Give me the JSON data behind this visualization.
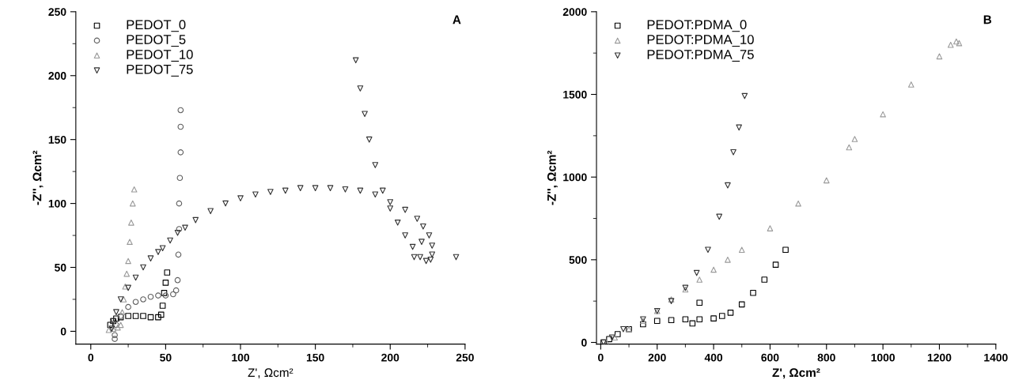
{
  "chart_data": [
    {
      "type": "scatter",
      "xlabel": "Z', Ωcm²",
      "ylabel": "-Z'', Ωcm²",
      "annotations": [
        "A"
      ],
      "xlim": [
        -10,
        250
      ],
      "ylim": [
        -10,
        250
      ],
      "xticks": [
        0,
        50,
        100,
        150,
        200,
        250
      ],
      "yticks": [
        0,
        50,
        100,
        150,
        200,
        250
      ],
      "grid": false,
      "legend": "top left",
      "series": [
        {
          "name": "PEDOT_0",
          "color": "#000000",
          "marker": "square",
          "x": [
            13,
            15,
            17,
            20,
            25,
            30,
            35,
            40,
            45,
            47,
            48,
            49,
            50,
            51
          ],
          "values": [
            5,
            8,
            10,
            11,
            12,
            12,
            12,
            11,
            11,
            13,
            20,
            30,
            38,
            46
          ]
        },
        {
          "name": "PEDOT_5",
          "color": "#606060",
          "marker": "circle",
          "x": [
            16,
            16,
            17,
            20,
            25,
            30,
            35,
            40,
            45,
            50,
            55,
            57,
            58,
            58.5,
            59,
            59,
            59.5,
            60,
            60,
            60
          ],
          "values": [
            -6,
            -3,
            5,
            12,
            19,
            23,
            25,
            27,
            28,
            28,
            29,
            32,
            40,
            60,
            80,
            100,
            120,
            140,
            160,
            173
          ]
        },
        {
          "name": "PEDOT_10",
          "color": "#9a9a9a",
          "marker": "triangle",
          "x": [
            12,
            15,
            18,
            20,
            21,
            22,
            23,
            24,
            25,
            26,
            27,
            28,
            29
          ],
          "values": [
            1,
            2,
            3,
            5,
            15,
            25,
            35,
            45,
            55,
            70,
            85,
            100,
            111
          ]
        },
        {
          "name": "PEDOT_75",
          "color": "#333333",
          "marker": "triangle_down",
          "x": [
            14,
            15,
            17,
            20,
            25,
            30,
            35,
            40,
            45,
            48,
            53,
            58,
            63,
            70,
            80,
            90,
            100,
            110,
            120,
            130,
            140,
            150,
            160,
            170,
            180,
            190,
            200,
            210,
            218,
            222,
            226,
            228,
            228,
            227,
            224,
            220,
            215,
            210,
            205,
            200,
            195,
            190,
            186,
            183,
            180,
            177,
            216,
            221,
            244
          ],
          "values": [
            2,
            8,
            15,
            25,
            34,
            42,
            50,
            57,
            62,
            65,
            71,
            77,
            81,
            87,
            94,
            100,
            104,
            107,
            109,
            110,
            112,
            112,
            112,
            111,
            110,
            107,
            101,
            95,
            88,
            82,
            75,
            67,
            60,
            56,
            55,
            58,
            66,
            75,
            85,
            96,
            110,
            130,
            150,
            170,
            190,
            212,
            58,
            70,
            58
          ]
        }
      ]
    },
    {
      "type": "scatter",
      "xlabel": "Z', Ωcm²",
      "ylabel": "-Z'', Ωcm²",
      "annotations": [
        "B"
      ],
      "xlim": [
        -15,
        1400
      ],
      "ylim": [
        -10,
        2000
      ],
      "xticks": [
        0,
        200,
        400,
        600,
        800,
        1000,
        1200,
        1400
      ],
      "yticks": [
        0,
        500,
        1000,
        1500,
        2000
      ],
      "grid": false,
      "legend": "top left",
      "series": [
        {
          "name": "PEDOT:PDMA_0",
          "color": "#000000",
          "marker": "square",
          "x": [
            10,
            30,
            60,
            100,
            150,
            200,
            250,
            300,
            350,
            400,
            430,
            460,
            500,
            540,
            580,
            620,
            655,
            325,
            350
          ],
          "values": [
            0,
            20,
            50,
            80,
            110,
            130,
            135,
            140,
            140,
            145,
            160,
            180,
            230,
            300,
            380,
            470,
            560,
            115,
            240
          ]
        },
        {
          "name": "PEDOT:PDMA_10",
          "color": "#9a9a9a",
          "marker": "triangle",
          "x": [
            20,
            50,
            100,
            150,
            200,
            250,
            300,
            350,
            400,
            450,
            500,
            600,
            700,
            800,
            880,
            900,
            1000,
            1100,
            1200,
            1240,
            1260,
            1270
          ],
          "values": [
            0,
            30,
            80,
            130,
            190,
            260,
            320,
            380,
            440,
            500,
            560,
            690,
            840,
            980,
            1180,
            1230,
            1380,
            1560,
            1730,
            1800,
            1820,
            1810
          ]
        },
        {
          "name": "PEDOT:PDMA_75",
          "color": "#333333",
          "marker": "triangle_down",
          "x": [
            10,
            40,
            80,
            150,
            200,
            250,
            300,
            340,
            380,
            420,
            450,
            470,
            490,
            510
          ],
          "values": [
            0,
            30,
            80,
            140,
            190,
            250,
            330,
            420,
            560,
            760,
            950,
            1150,
            1300,
            1490
          ]
        }
      ]
    }
  ]
}
